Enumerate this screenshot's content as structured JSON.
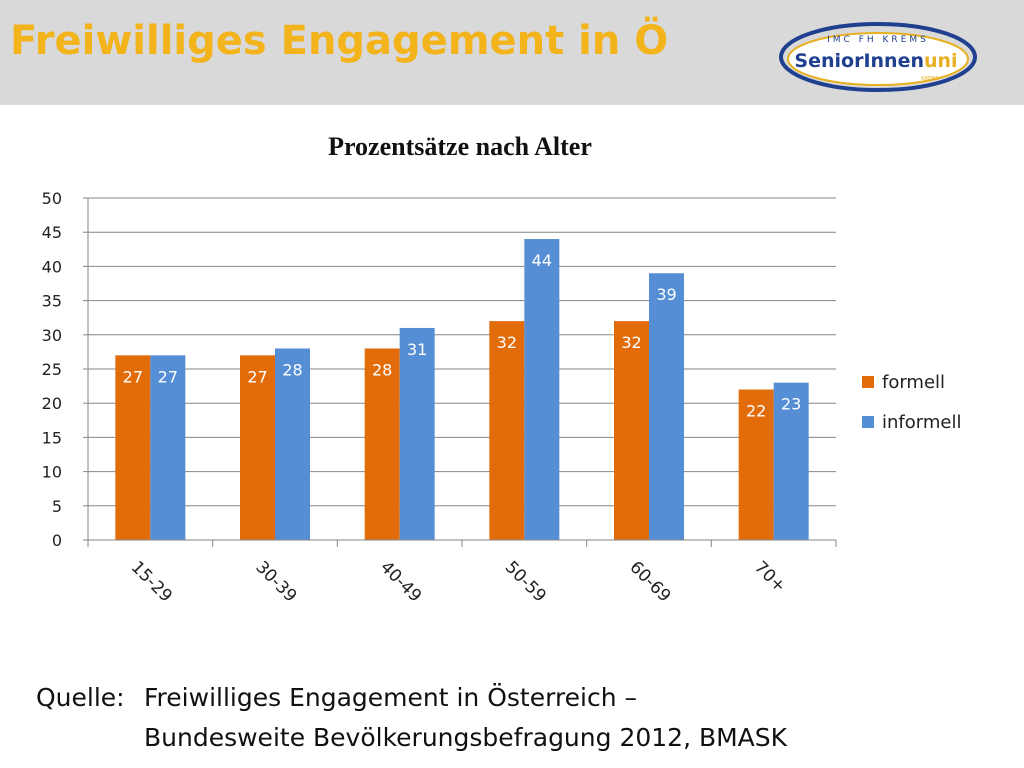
{
  "slide": {
    "title": "Freiwilliges Engagement in Ö"
  },
  "logo": {
    "top_text": "IMC FH KREMS",
    "main_text_a": "SeniorInnen",
    "main_text_b": "uni",
    "small_text": "KREMS"
  },
  "source": {
    "label": "Quelle:",
    "line1": "Freiwilliges Engagement in Österreich –",
    "line2": "Bundesweite Bevölkerungsbefragung 2012, BMASK"
  },
  "colors": {
    "formell": "#e36c0a",
    "informell": "#558ed5",
    "header_bg": "#d9d9d9",
    "title": "#f2b31b",
    "logo_blue": "#1f3f8f",
    "logo_gold": "#e8b020"
  },
  "chart_data": {
    "type": "bar",
    "title": "Prozentsätze nach Alter",
    "categories": [
      "15-29",
      "30-39",
      "40-49",
      "50-59",
      "60-69",
      "70+"
    ],
    "series": [
      {
        "name": "formell",
        "values": [
          27,
          27,
          28,
          32,
          32,
          22
        ]
      },
      {
        "name": "informell",
        "values": [
          27,
          28,
          31,
          44,
          39,
          23
        ]
      }
    ],
    "ylim": [
      0,
      50
    ],
    "yticks": [
      0,
      5,
      10,
      15,
      20,
      25,
      30,
      35,
      40,
      45,
      50
    ],
    "grid": true,
    "legend": "right"
  }
}
